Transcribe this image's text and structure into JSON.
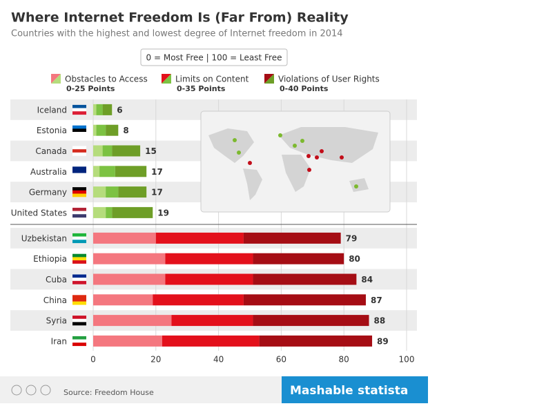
{
  "chart_data": {
    "type": "stacked-bar",
    "title": "Where Internet Freedom Is (Far From) Reality",
    "subtitle": "Countries with the highest and lowest degree of Internet freedom in 2014",
    "scale_note": "0 = Most Free  |  100 = Least Free",
    "legend": [
      {
        "name": "Obstacles to Access",
        "range": "0-25 Points"
      },
      {
        "name": "Limits on Content",
        "range": "0-35 Points"
      },
      {
        "name": "Violations of User Rights",
        "range": "0-40 Points"
      }
    ],
    "groups": [
      {
        "categories": [
          "Iceland",
          "Estonia",
          "Canada",
          "Australia",
          "Germany",
          "United States"
        ],
        "totals": [
          6,
          8,
          15,
          17,
          17,
          19
        ],
        "series": [
          {
            "values": [
              1,
              1,
              3,
              2,
              4,
              4
            ],
            "color": "#b5dc7c"
          },
          {
            "values": [
              2,
              3,
              3,
              5,
              4,
              2
            ],
            "color": "#7cc242"
          },
          {
            "values": [
              3,
              4,
              9,
              10,
              9,
              13
            ],
            "color": "#6e9e27"
          }
        ]
      },
      {
        "categories": [
          "Uzbekistan",
          "Ethiopia",
          "Cuba",
          "China",
          "Syria",
          "Iran"
        ],
        "totals": [
          79,
          80,
          84,
          87,
          88,
          89
        ],
        "series": [
          {
            "values": [
              20,
              23,
              23,
              19,
              25,
              22
            ],
            "color": "#f4777f"
          },
          {
            "values": [
              28,
              28,
              28,
              29,
              26,
              31
            ],
            "color": "#e3101b"
          },
          {
            "values": [
              31,
              29,
              33,
              39,
              37,
              36
            ],
            "color": "#a50d14"
          }
        ]
      }
    ],
    "xlim": [
      0,
      100
    ],
    "xticks": [
      0,
      20,
      40,
      60,
      80,
      100
    ],
    "grid": true,
    "source": "Source: Freedom House",
    "brand": "Mashable",
    "publisher": "statista"
  }
}
